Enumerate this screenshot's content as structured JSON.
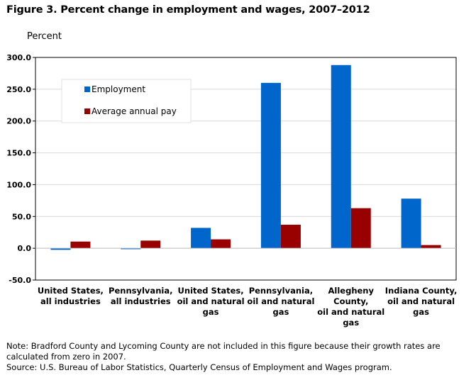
{
  "figure_title": "Figure 3. Percent change in employment and wages, 2007–2012",
  "colors": {
    "employment": "#0066cc",
    "pay": "#990000",
    "grid": "#d9d9d9",
    "axis": "#000000"
  },
  "chart_data": {
    "type": "bar",
    "ylabel": "Percent",
    "ylim": [
      -50,
      300
    ],
    "yticks": [
      -50,
      0,
      50,
      100,
      150,
      200,
      250,
      300
    ],
    "ytick_labels": [
      "-50.0",
      "0.0",
      "50.0",
      "100.0",
      "150.0",
      "200.0",
      "250.0",
      "300.0"
    ],
    "grid": true,
    "legend_position": "top-left",
    "categories": [
      [
        "United States,",
        "all industries"
      ],
      [
        "Pennsylvania,",
        "all industries"
      ],
      [
        "United States,",
        "oil and natural",
        "gas"
      ],
      [
        "Pennsylvania,",
        "oil and natural",
        "gas"
      ],
      [
        "Allegheny",
        "County,",
        "oil and natural",
        "gas"
      ],
      [
        "Indiana County,",
        "oil and natural",
        "gas"
      ]
    ],
    "series": [
      {
        "name": "Employment",
        "values": [
          -2.5,
          -1.5,
          32,
          260,
          288,
          78
        ]
      },
      {
        "name": "Average annual pay",
        "values": [
          10.5,
          12,
          14,
          37,
          63,
          5
        ]
      }
    ]
  },
  "notes": {
    "note": "Note:  Bradford County and Lycoming County are not included in this figure because their growth rates are calculated from zero in 2007.",
    "source": "Source:  U.S. Bureau of Labor Statistics, Quarterly Census of Employment and Wages program."
  }
}
